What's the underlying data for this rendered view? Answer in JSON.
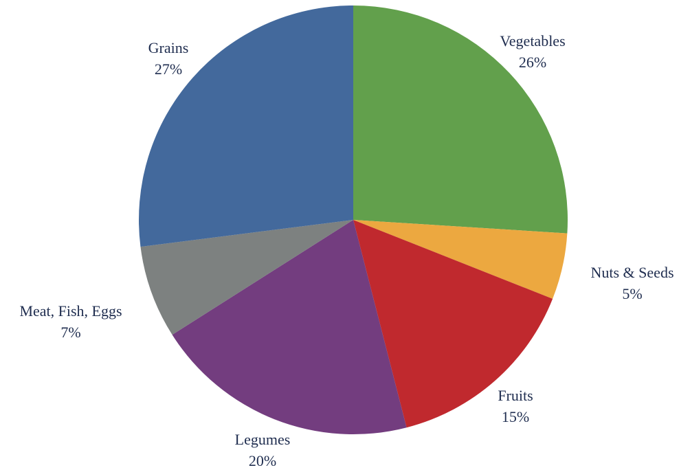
{
  "chart_data": {
    "type": "pie",
    "title": "",
    "start": "12 o'clock",
    "direction": "clockwise",
    "slices": [
      {
        "label": "Vegetables",
        "value": 26,
        "percent_label": "26%",
        "color": "#62A04C"
      },
      {
        "label": "Nuts & Seeds",
        "value": 5,
        "percent_label": "5%",
        "color": "#ECA840"
      },
      {
        "label": "Fruits",
        "value": 15,
        "percent_label": "15%",
        "color": "#C0292E"
      },
      {
        "label": "Legumes",
        "value": 20,
        "percent_label": "20%",
        "color": "#733D7F"
      },
      {
        "label": "Meat, Fish, Eggs",
        "value": 7,
        "percent_label": "7%",
        "color": "#7D8180"
      },
      {
        "label": "Grains",
        "value": 27,
        "percent_label": "27%",
        "color": "#43699C"
      }
    ]
  }
}
